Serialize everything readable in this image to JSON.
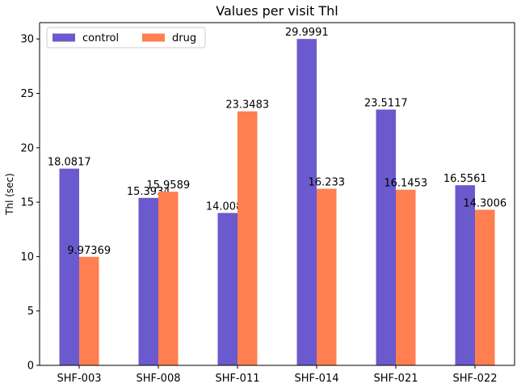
{
  "chart_data": {
    "type": "bar",
    "title": "Values per visit Thl",
    "xlabel": "",
    "ylabel": "Thl (sec)",
    "categories": [
      "SHF-003",
      "SHF-008",
      "SHF-011",
      "SHF-014",
      "SHF-021",
      "SHF-022"
    ],
    "series": [
      {
        "name": "control",
        "color": "#6a5acd",
        "values": [
          18.0817,
          15.3934,
          14.0089,
          29.9991,
          23.5117,
          16.5561
        ],
        "labels": [
          "18.0817",
          "15.3934",
          "14.0089",
          "29.9991",
          "23.5117",
          "16.5561"
        ]
      },
      {
        "name": "drug",
        "color": "#ff7f50",
        "values": [
          9.97369,
          15.9589,
          23.3483,
          16.233,
          16.1453,
          14.3006
        ],
        "labels": [
          "9.97369",
          "15.9589",
          "23.3483",
          "16.233",
          "16.1453",
          "14.3006"
        ]
      }
    ],
    "ylim": [
      0,
      31.5
    ],
    "yticks": [
      0,
      5,
      10,
      15,
      20,
      25,
      30
    ],
    "ytick_labels": [
      "0",
      "5",
      "10",
      "15",
      "20",
      "25",
      "30"
    ],
    "grid": false,
    "legend_position": "top-left"
  }
}
